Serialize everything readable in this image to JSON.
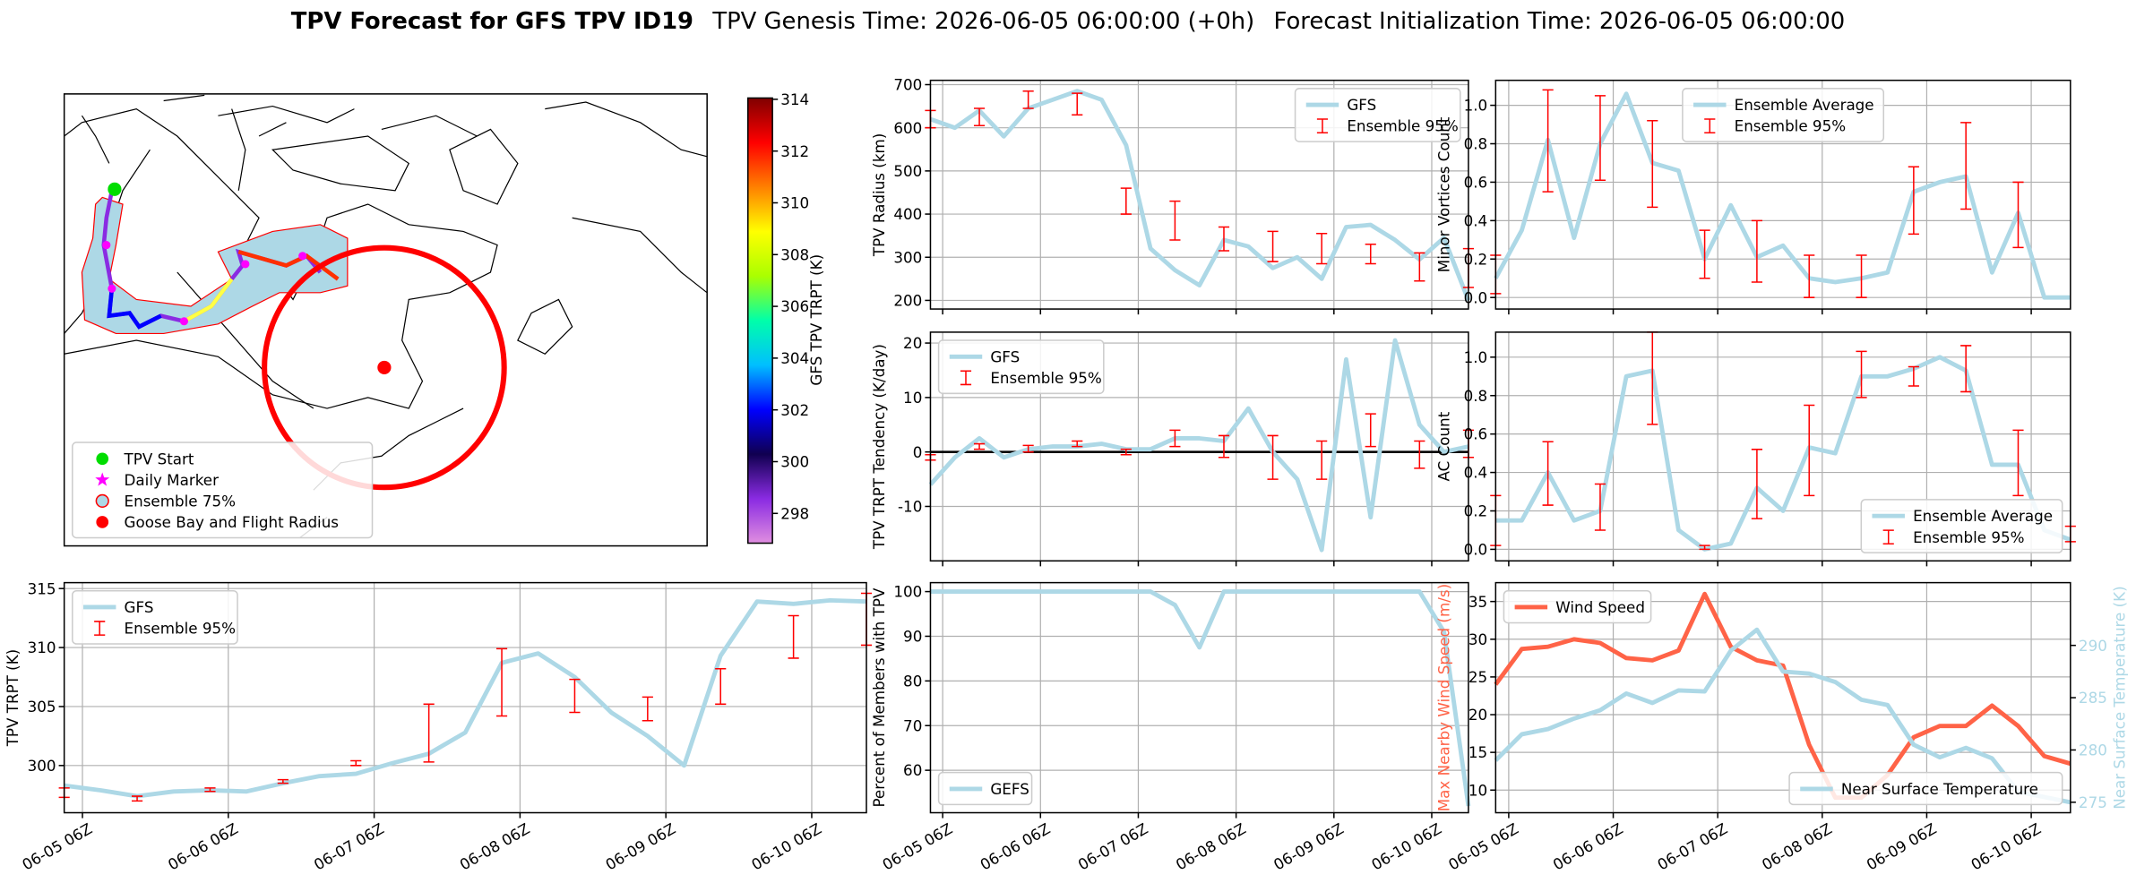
{
  "title": "TPV Forecast for GFS TPV ID19",
  "genesis_time": "TPV Genesis Time: 2026-06-05 06:00:00 (+0h)",
  "init_time": "Forecast Initialization Time: 2026-06-05 06:00:00",
  "chart_data": [
    {
      "type": "map",
      "legend_corner": "lower left",
      "legend": [
        {
          "label": "TPV Start",
          "marker": "circle",
          "color": "#00dd00"
        },
        {
          "label": "Daily Marker",
          "marker": "star",
          "color": "#ff00ff"
        },
        {
          "label": "Ensemble 75%",
          "marker": "ring",
          "color": "#add8e6"
        },
        {
          "label": "Goose Bay and Flight Radius",
          "marker": "circle",
          "color": "#ff0000"
        }
      ],
      "colorbar": {
        "label": "GFS TPV TRPT (K)",
        "lim": [
          296.85,
          314.05
        ],
        "ticks": [
          298,
          300,
          302,
          304,
          306,
          308,
          310,
          312,
          314
        ],
        "colors": [
          "#e08ee0",
          "#8a2be2",
          "#100050",
          "#0000ff",
          "#00bfff",
          "#00ffaa",
          "#aaff00",
          "#ffff00",
          "#ff8000",
          "#ff0000",
          "#800000"
        ]
      }
    },
    {
      "type": "line",
      "ylabel": "TPV Radius (km)",
      "legend": "upper right",
      "grid": true,
      "sharex": true,
      "xlim": [
        0,
        132
      ],
      "xticks": [
        3,
        27,
        51,
        75,
        99,
        123
      ],
      "ylim": [
        180,
        710
      ],
      "yticks": [
        200,
        300,
        400,
        500,
        600,
        700
      ],
      "x": [
        0,
        6,
        12,
        18,
        24,
        30,
        36,
        42,
        48,
        54,
        60,
        66,
        72,
        78,
        84,
        90,
        96,
        102,
        108,
        114,
        120,
        126,
        132
      ],
      "series": [
        {
          "name": "GFS",
          "color": "#add8e6",
          "values": [
            620,
            600,
            640,
            580,
            645,
            665,
            685,
            665,
            560,
            320,
            270,
            235,
            340,
            325,
            275,
            300,
            250,
            370,
            375,
            340,
            295,
            345,
            200
          ]
        },
        {
          "name": "Ensemble 95%",
          "color": "#ff0000",
          "kind": "errorbar",
          "x": [
            0,
            12,
            24,
            36,
            48,
            60,
            72,
            84,
            96,
            108,
            120,
            132
          ],
          "low": [
            600,
            605,
            645,
            630,
            400,
            340,
            315,
            290,
            285,
            285,
            245,
            230
          ],
          "high": [
            640,
            645,
            685,
            680,
            460,
            430,
            370,
            360,
            355,
            330,
            310,
            320
          ]
        }
      ]
    },
    {
      "type": "line",
      "ylabel": "Minor Vortices Count",
      "legend": "upper center",
      "grid": true,
      "sharex": true,
      "xlim": [
        0,
        132
      ],
      "xticks": [
        3,
        27,
        51,
        75,
        99,
        123
      ],
      "ylim": [
        -0.06,
        1.13
      ],
      "yticks": [
        {
          "value": 0,
          "label": "0.0"
        },
        0.2,
        0.4,
        0.6,
        0.8,
        {
          "value": 1,
          "label": "1.0"
        }
      ],
      "x": [
        0,
        6,
        12,
        18,
        24,
        30,
        36,
        42,
        48,
        54,
        60,
        66,
        72,
        78,
        84,
        90,
        96,
        102,
        108,
        114,
        120,
        126,
        132
      ],
      "series": [
        {
          "name": "Ensemble Average",
          "color": "#add8e6",
          "values": [
            0.1,
            0.35,
            0.82,
            0.31,
            0.8,
            1.06,
            0.7,
            0.66,
            0.2,
            0.48,
            0.21,
            0.27,
            0.1,
            0.08,
            0.1,
            0.13,
            0.55,
            0.6,
            0.63,
            0.13,
            0.44,
            0,
            0
          ]
        },
        {
          "name": "Ensemble 95%",
          "color": "#ff0000",
          "kind": "errorbar",
          "x": [
            0,
            12,
            24,
            36,
            48,
            60,
            72,
            84,
            96,
            108,
            120
          ],
          "low": [
            0.02,
            0.55,
            0.61,
            0.47,
            0.1,
            0.08,
            0,
            0,
            0.33,
            0.46,
            0.26
          ],
          "high": [
            0.22,
            1.08,
            1.05,
            0.92,
            0.35,
            0.4,
            0.22,
            0.22,
            0.68,
            0.91,
            0.6
          ]
        }
      ]
    },
    {
      "type": "line",
      "ylabel": "TPV TRPT Tendency (K/day)",
      "legend": "upper left",
      "grid": true,
      "sharex": true,
      "hline": 0,
      "xlim": [
        0,
        132
      ],
      "xticks": [
        3,
        27,
        51,
        75,
        99,
        123
      ],
      "ylim": [
        -20,
        22
      ],
      "yticks": [
        -10,
        0,
        10,
        20
      ],
      "x": [
        0,
        6,
        12,
        18,
        24,
        30,
        36,
        42,
        48,
        54,
        60,
        66,
        72,
        78,
        84,
        90,
        96,
        102,
        108,
        114,
        120,
        126,
        132
      ],
      "series": [
        {
          "name": "GFS",
          "color": "#add8e6",
          "values": [
            -6,
            -1,
            2.5,
            -1,
            0.5,
            1,
            1,
            1.5,
            0.5,
            0.5,
            2.5,
            2.5,
            2,
            8,
            0,
            -5,
            -18,
            17,
            -12,
            20.5,
            5,
            0,
            1
          ]
        },
        {
          "name": "Ensemble 95%",
          "color": "#ff0000",
          "kind": "errorbar",
          "x": [
            0,
            12,
            24,
            36,
            48,
            60,
            72,
            84,
            96,
            108,
            120,
            132
          ],
          "low": [
            -1.5,
            0.5,
            0,
            1,
            -0.5,
            1,
            -1,
            -5,
            -5,
            1,
            -3,
            -1
          ],
          "high": [
            -0.5,
            1.5,
            1.2,
            2,
            0.5,
            4,
            3,
            3,
            2,
            7,
            2,
            4
          ]
        }
      ]
    },
    {
      "type": "line",
      "ylabel": "AC Count",
      "legend": "lower right",
      "grid": true,
      "sharex": true,
      "xlim": [
        0,
        132
      ],
      "xticks": [
        3,
        27,
        51,
        75,
        99,
        123
      ],
      "ylim": [
        -0.06,
        1.13
      ],
      "yticks": [
        {
          "value": 0,
          "label": "0.0"
        },
        0.2,
        0.4,
        0.6,
        0.8,
        {
          "value": 1,
          "label": "1.0"
        }
      ],
      "x": [
        0,
        6,
        12,
        18,
        24,
        30,
        36,
        42,
        48,
        54,
        60,
        66,
        72,
        78,
        84,
        90,
        96,
        102,
        108,
        114,
        120,
        126,
        132
      ],
      "series": [
        {
          "name": "Ensemble Average",
          "color": "#add8e6",
          "values": [
            0.15,
            0.15,
            0.4,
            0.15,
            0.2,
            0.9,
            0.93,
            0.1,
            0,
            0.03,
            0.32,
            0.2,
            0.53,
            0.5,
            0.9,
            0.9,
            0.94,
            1.0,
            0.93,
            0.44,
            0.44,
            0.1,
            0.05
          ]
        },
        {
          "name": "Ensemble 95%",
          "color": "#ff0000",
          "kind": "errorbar",
          "x": [
            0,
            12,
            24,
            36,
            48,
            60,
            72,
            84,
            96,
            108,
            120,
            132
          ],
          "low": [
            0.02,
            0.23,
            0.1,
            0.65,
            0,
            0.16,
            0.28,
            0.79,
            0.85,
            0.82,
            0.28,
            0.04
          ],
          "high": [
            0.28,
            0.56,
            0.34,
            1.13,
            0.02,
            0.52,
            0.75,
            1.03,
            0.95,
            1.06,
            0.62,
            0.12
          ]
        }
      ]
    },
    {
      "type": "line",
      "ylabel": "TPV TRPT (K)",
      "legend": "upper left",
      "grid": true,
      "xlim": [
        0,
        132
      ],
      "ylim": [
        296,
        315.5
      ],
      "yticks": [
        300,
        305,
        310,
        315
      ],
      "xticks": [
        {
          "value": 3,
          "label": "06-05 06Z"
        },
        {
          "value": 27,
          "label": "06-06 06Z"
        },
        {
          "value": 51,
          "label": "06-07 06Z"
        },
        {
          "value": 75,
          "label": "06-08 06Z"
        },
        {
          "value": 99,
          "label": "06-09 06Z"
        },
        {
          "value": 123,
          "label": "06-10 06Z"
        }
      ],
      "x": [
        0,
        6,
        12,
        18,
        24,
        30,
        36,
        42,
        48,
        54,
        60,
        66,
        72,
        78,
        84,
        90,
        96,
        102,
        108,
        114,
        120,
        126,
        132
      ],
      "series": [
        {
          "name": "GFS",
          "color": "#add8e6",
          "values": [
            298.3,
            297.9,
            297.4,
            297.8,
            297.9,
            297.8,
            298.5,
            299.1,
            299.3,
            300.2,
            301,
            302.8,
            308.7,
            309.5,
            307.5,
            304.5,
            302.5,
            300,
            309.3,
            313.9,
            313.7,
            314,
            313.9
          ]
        },
        {
          "name": "Ensemble 95%",
          "color": "#ff0000",
          "kind": "errorbar",
          "x": [
            0,
            12,
            24,
            36,
            48,
            60,
            72,
            84,
            96,
            108,
            120,
            132
          ],
          "low": [
            297.3,
            297,
            297.8,
            298.5,
            300,
            300.3,
            304.2,
            304.5,
            303.8,
            305.2,
            309.1,
            310.2
          ],
          "high": [
            298.1,
            297.4,
            298.1,
            298.8,
            300.4,
            305.2,
            309.9,
            307.3,
            305.8,
            308.2,
            312.7,
            314.6
          ]
        }
      ]
    },
    {
      "type": "line",
      "ylabel": "Percent of Members with TPV",
      "legend": "lower left",
      "grid": true,
      "xlim": [
        0,
        132
      ],
      "ylim": [
        50.5,
        102
      ],
      "yticks": [
        60,
        70,
        80,
        90,
        100
      ],
      "xticks": [
        {
          "value": 3,
          "label": "06-05 06Z"
        },
        {
          "value": 27,
          "label": "06-06 06Z"
        },
        {
          "value": 51,
          "label": "06-07 06Z"
        },
        {
          "value": 75,
          "label": "06-08 06Z"
        },
        {
          "value": 99,
          "label": "06-09 06Z"
        },
        {
          "value": 123,
          "label": "06-10 06Z"
        }
      ],
      "x": [
        0,
        6,
        12,
        18,
        24,
        30,
        36,
        42,
        48,
        54,
        60,
        66,
        72,
        78,
        84,
        90,
        96,
        102,
        108,
        114,
        120,
        126,
        132
      ],
      "series": [
        {
          "name": "GEFS",
          "color": "#add8e6",
          "values": [
            100,
            100,
            100,
            100,
            100,
            100,
            100,
            100,
            100,
            100,
            97,
            87.5,
            100,
            100,
            100,
            100,
            100,
            100,
            100,
            100,
            100,
            91,
            52
          ]
        }
      ]
    },
    {
      "type": "line",
      "ylabel": "Max Nearby Wind Speed (m/s)",
      "y2label": "Near Surface Temperature (K)",
      "grid": true,
      "xlim": [
        0,
        132
      ],
      "ylim": [
        7,
        37.5
      ],
      "yticks": [
        10,
        15,
        20,
        25,
        30,
        35
      ],
      "y2lim": [
        274,
        296
      ],
      "y2ticks": [
        275,
        280,
        285,
        290
      ],
      "xticks": [
        {
          "value": 3,
          "label": "06-05 06Z"
        },
        {
          "value": 27,
          "label": "06-06 06Z"
        },
        {
          "value": 51,
          "label": "06-07 06Z"
        },
        {
          "value": 75,
          "label": "06-08 06Z"
        },
        {
          "value": 99,
          "label": "06-09 06Z"
        },
        {
          "value": 123,
          "label": "06-10 06Z"
        }
      ],
      "x": [
        0,
        6,
        12,
        18,
        24,
        30,
        36,
        42,
        48,
        54,
        60,
        66,
        72,
        78,
        84,
        90,
        96,
        102,
        108,
        114,
        120,
        126,
        132
      ],
      "series": [
        {
          "name": "Wind Speed",
          "color": "#ff6347",
          "legend": "upper left",
          "values": [
            24,
            28.7,
            29,
            30,
            29.5,
            27.5,
            27.2,
            28.5,
            36,
            29,
            27.2,
            26.5,
            16,
            9,
            9,
            12,
            17,
            18.5,
            18.5,
            21.2,
            18.5,
            14.5,
            13.5
          ]
        },
        {
          "name": "Near Surface Temperature",
          "color": "#add8e6",
          "axis": "y2",
          "legend": "lower right",
          "values": [
            279,
            281.5,
            282,
            283,
            283.8,
            285.4,
            284.5,
            285.7,
            285.6,
            289.5,
            291.5,
            287.5,
            287.3,
            286.5,
            284.8,
            284.3,
            280.5,
            279.3,
            280.2,
            279.2,
            276,
            275.5,
            275
          ]
        }
      ]
    }
  ]
}
